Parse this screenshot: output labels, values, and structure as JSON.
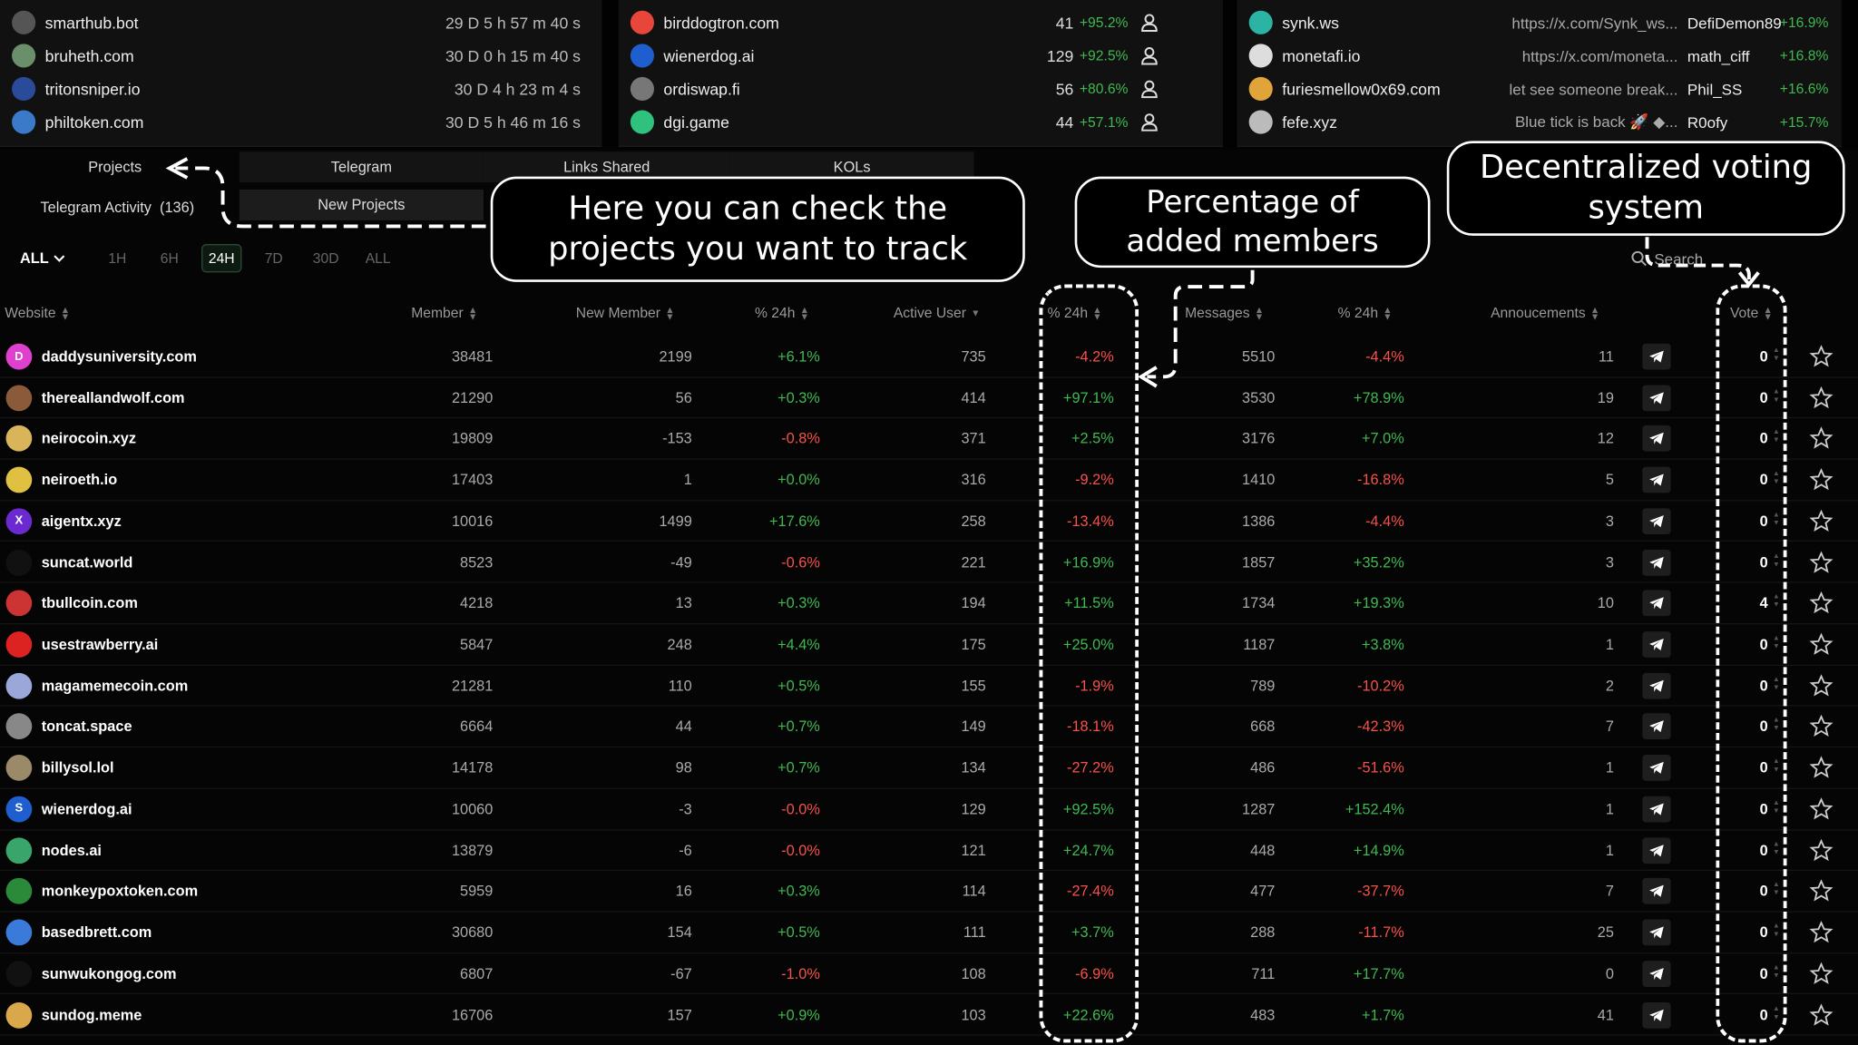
{
  "top": {
    "panel1": [
      {
        "name": "smarthub.bot",
        "time": "29 D 5 h 57 m 40 s",
        "icon": "smarthub-logo",
        "color": "#555"
      },
      {
        "name": "bruheth.com",
        "time": "30 D 0 h 15 m 40 s",
        "icon": "bruheth-logo",
        "color": "#6b8e6b"
      },
      {
        "name": "tritonsniper.io",
        "time": "30 D 4 h 23 m 4 s",
        "icon": "tritonsniper-logo",
        "color": "#2a4a9a"
      },
      {
        "name": "philtoken.com",
        "time": "30 D 5 h 46 m 16 s",
        "icon": "philtoken-logo",
        "color": "#3a7ac8"
      }
    ],
    "panel2": [
      {
        "name": "birddogtron.com",
        "count": "41",
        "pct": "+95.2%",
        "icon": "birddogtron-logo",
        "color": "#e8463a"
      },
      {
        "name": "wienerdog.ai",
        "count": "129",
        "pct": "+92.5%",
        "icon": "wienerdog-logo",
        "color": "#1f5ecf"
      },
      {
        "name": "ordiswap.fi",
        "count": "56",
        "pct": "+80.6%",
        "icon": "ordiswap-logo",
        "color": "#777"
      },
      {
        "name": "dgi.game",
        "count": "44",
        "pct": "+57.1%",
        "icon": "dgi-logo",
        "color": "#2ec27e"
      }
    ],
    "panel3": [
      {
        "name": "synk.ws",
        "url": "https://x.com/Synk_ws...",
        "kol": "DefiDemon89",
        "pct": "+16.9%",
        "icon": "synk-logo",
        "color": "#2bb3a3"
      },
      {
        "name": "monetafi.io",
        "url": "https://x.com/moneta...",
        "kol": "math_ciff",
        "pct": "+16.8%",
        "icon": "monetafi-logo",
        "color": "#ddd"
      },
      {
        "name": "furiesmellow0x69.com",
        "url": "let see someone break...",
        "kol": "Phil_SS",
        "pct": "+16.6%",
        "icon": "furiesmellow-logo",
        "color": "#e0a43a"
      },
      {
        "name": "fefe.xyz",
        "url": "Blue tick is back 🚀 ◆...",
        "kol": "R0ofy",
        "pct": "+15.7%",
        "icon": "fefe-logo",
        "color": "#bbb"
      }
    ]
  },
  "tabs": {
    "projects": "Projects",
    "telegram_activity": "Telegram Activity",
    "telegram_activity_count": "(136)",
    "telegram": "Telegram",
    "links_shared": "Links Shared",
    "kols": "KOLs",
    "new_projects": "New Projects"
  },
  "filters": {
    "all_dropdown": "ALL",
    "ranges": [
      "1H",
      "6H",
      "24H",
      "7D",
      "30D",
      "ALL"
    ],
    "selected": "24H"
  },
  "search": {
    "placeholder": "Search"
  },
  "columns": {
    "website": "Website",
    "member": "Member",
    "new_member": "New Member",
    "pct24h": "% 24h",
    "active_user": "Active User",
    "pct24h_2": "% 24h",
    "messages": "Messages",
    "pct24h_3": "% 24h",
    "announcements": "Annoucements",
    "vote": "Vote"
  },
  "rows": [
    {
      "site": "daddysuniversity.com",
      "member": "38481",
      "new_member": "2199",
      "nm_pct": "+6.1%",
      "active": "735",
      "au_pct": "-4.2%",
      "messages": "5510",
      "msg_pct": "-4.4%",
      "ann": "11",
      "vote": "0",
      "logo_color": "#e040d0",
      "logo_letter": "D"
    },
    {
      "site": "thereallandwolf.com",
      "member": "21290",
      "new_member": "56",
      "nm_pct": "+0.3%",
      "active": "414",
      "au_pct": "+97.1%",
      "messages": "3530",
      "msg_pct": "+78.9%",
      "ann": "19",
      "vote": "0",
      "logo_color": "#8a5a3a",
      "logo_letter": ""
    },
    {
      "site": "neirocoin.xyz",
      "member": "19809",
      "new_member": "-153",
      "nm_pct": "-0.8%",
      "active": "371",
      "au_pct": "+2.5%",
      "messages": "3176",
      "msg_pct": "+7.0%",
      "ann": "12",
      "vote": "0",
      "logo_color": "#d9b45a",
      "logo_letter": ""
    },
    {
      "site": "neiroeth.io",
      "member": "17403",
      "new_member": "1",
      "nm_pct": "+0.0%",
      "active": "316",
      "au_pct": "-9.2%",
      "messages": "1410",
      "msg_pct": "-16.8%",
      "ann": "5",
      "vote": "0",
      "logo_color": "#e0c040",
      "logo_letter": ""
    },
    {
      "site": "aigentx.xyz",
      "member": "10016",
      "new_member": "1499",
      "nm_pct": "+17.6%",
      "active": "258",
      "au_pct": "-13.4%",
      "messages": "1386",
      "msg_pct": "-4.4%",
      "ann": "3",
      "vote": "0",
      "logo_color": "#6a2ad0",
      "logo_letter": "X"
    },
    {
      "site": "suncat.world",
      "member": "8523",
      "new_member": "-49",
      "nm_pct": "-0.6%",
      "active": "221",
      "au_pct": "+16.9%",
      "messages": "1857",
      "msg_pct": "+35.2%",
      "ann": "3",
      "vote": "0",
      "logo_color": "#111",
      "logo_letter": ""
    },
    {
      "site": "tbullcoin.com",
      "member": "4218",
      "new_member": "13",
      "nm_pct": "+0.3%",
      "active": "194",
      "au_pct": "+11.5%",
      "messages": "1734",
      "msg_pct": "+19.3%",
      "ann": "10",
      "vote": "4",
      "logo_color": "#c33",
      "logo_letter": ""
    },
    {
      "site": "usestrawberry.ai",
      "member": "5847",
      "new_member": "248",
      "nm_pct": "+4.4%",
      "active": "175",
      "au_pct": "+25.0%",
      "messages": "1187",
      "msg_pct": "+3.8%",
      "ann": "1",
      "vote": "0",
      "logo_color": "#d22",
      "logo_letter": ""
    },
    {
      "site": "magamemecoin.com",
      "member": "21281",
      "new_member": "110",
      "nm_pct": "+0.5%",
      "active": "155",
      "au_pct": "-1.9%",
      "messages": "789",
      "msg_pct": "-10.2%",
      "ann": "2",
      "vote": "0",
      "logo_color": "#9aa7d8",
      "logo_letter": ""
    },
    {
      "site": "toncat.space",
      "member": "6664",
      "new_member": "44",
      "nm_pct": "+0.7%",
      "active": "149",
      "au_pct": "-18.1%",
      "messages": "668",
      "msg_pct": "-42.3%",
      "ann": "7",
      "vote": "0",
      "logo_color": "#888",
      "logo_letter": ""
    },
    {
      "site": "billysol.lol",
      "member": "14178",
      "new_member": "98",
      "nm_pct": "+0.7%",
      "active": "134",
      "au_pct": "-27.2%",
      "messages": "486",
      "msg_pct": "-51.6%",
      "ann": "1",
      "vote": "0",
      "logo_color": "#9a8a6a",
      "logo_letter": ""
    },
    {
      "site": "wienerdog.ai",
      "member": "10060",
      "new_member": "-3",
      "nm_pct": "-0.0%",
      "active": "129",
      "au_pct": "+92.5%",
      "messages": "1287",
      "msg_pct": "+152.4%",
      "ann": "1",
      "vote": "0",
      "logo_color": "#1f5ecf",
      "logo_letter": "S"
    },
    {
      "site": "nodes.ai",
      "member": "13879",
      "new_member": "-6",
      "nm_pct": "-0.0%",
      "active": "121",
      "au_pct": "+24.7%",
      "messages": "448",
      "msg_pct": "+14.9%",
      "ann": "1",
      "vote": "0",
      "logo_color": "#3aa56a",
      "logo_letter": ""
    },
    {
      "site": "monkeypoxtoken.com",
      "member": "5959",
      "new_member": "16",
      "nm_pct": "+0.3%",
      "active": "114",
      "au_pct": "-27.4%",
      "messages": "477",
      "msg_pct": "-37.7%",
      "ann": "7",
      "vote": "0",
      "logo_color": "#2a8a3a",
      "logo_letter": ""
    },
    {
      "site": "basedbrett.com",
      "member": "30680",
      "new_member": "154",
      "nm_pct": "+0.5%",
      "active": "111",
      "au_pct": "+3.7%",
      "messages": "288",
      "msg_pct": "-11.7%",
      "ann": "25",
      "vote": "0",
      "logo_color": "#3a7ad8",
      "logo_letter": ""
    },
    {
      "site": "sunwukongog.com",
      "member": "6807",
      "new_member": "-67",
      "nm_pct": "-1.0%",
      "active": "108",
      "au_pct": "-6.9%",
      "messages": "711",
      "msg_pct": "+17.7%",
      "ann": "0",
      "vote": "0",
      "logo_color": "#111",
      "logo_letter": ""
    },
    {
      "site": "sundog.meme",
      "member": "16706",
      "new_member": "157",
      "nm_pct": "+0.9%",
      "active": "103",
      "au_pct": "+22.6%",
      "messages": "483",
      "msg_pct": "+1.7%",
      "ann": "41",
      "vote": "0",
      "logo_color": "#d9a84a",
      "logo_letter": ""
    }
  ],
  "callouts": {
    "track": "Here you can check the projects you want to track",
    "percentage": "Percentage of added members",
    "voting": "Decentralized voting system"
  }
}
